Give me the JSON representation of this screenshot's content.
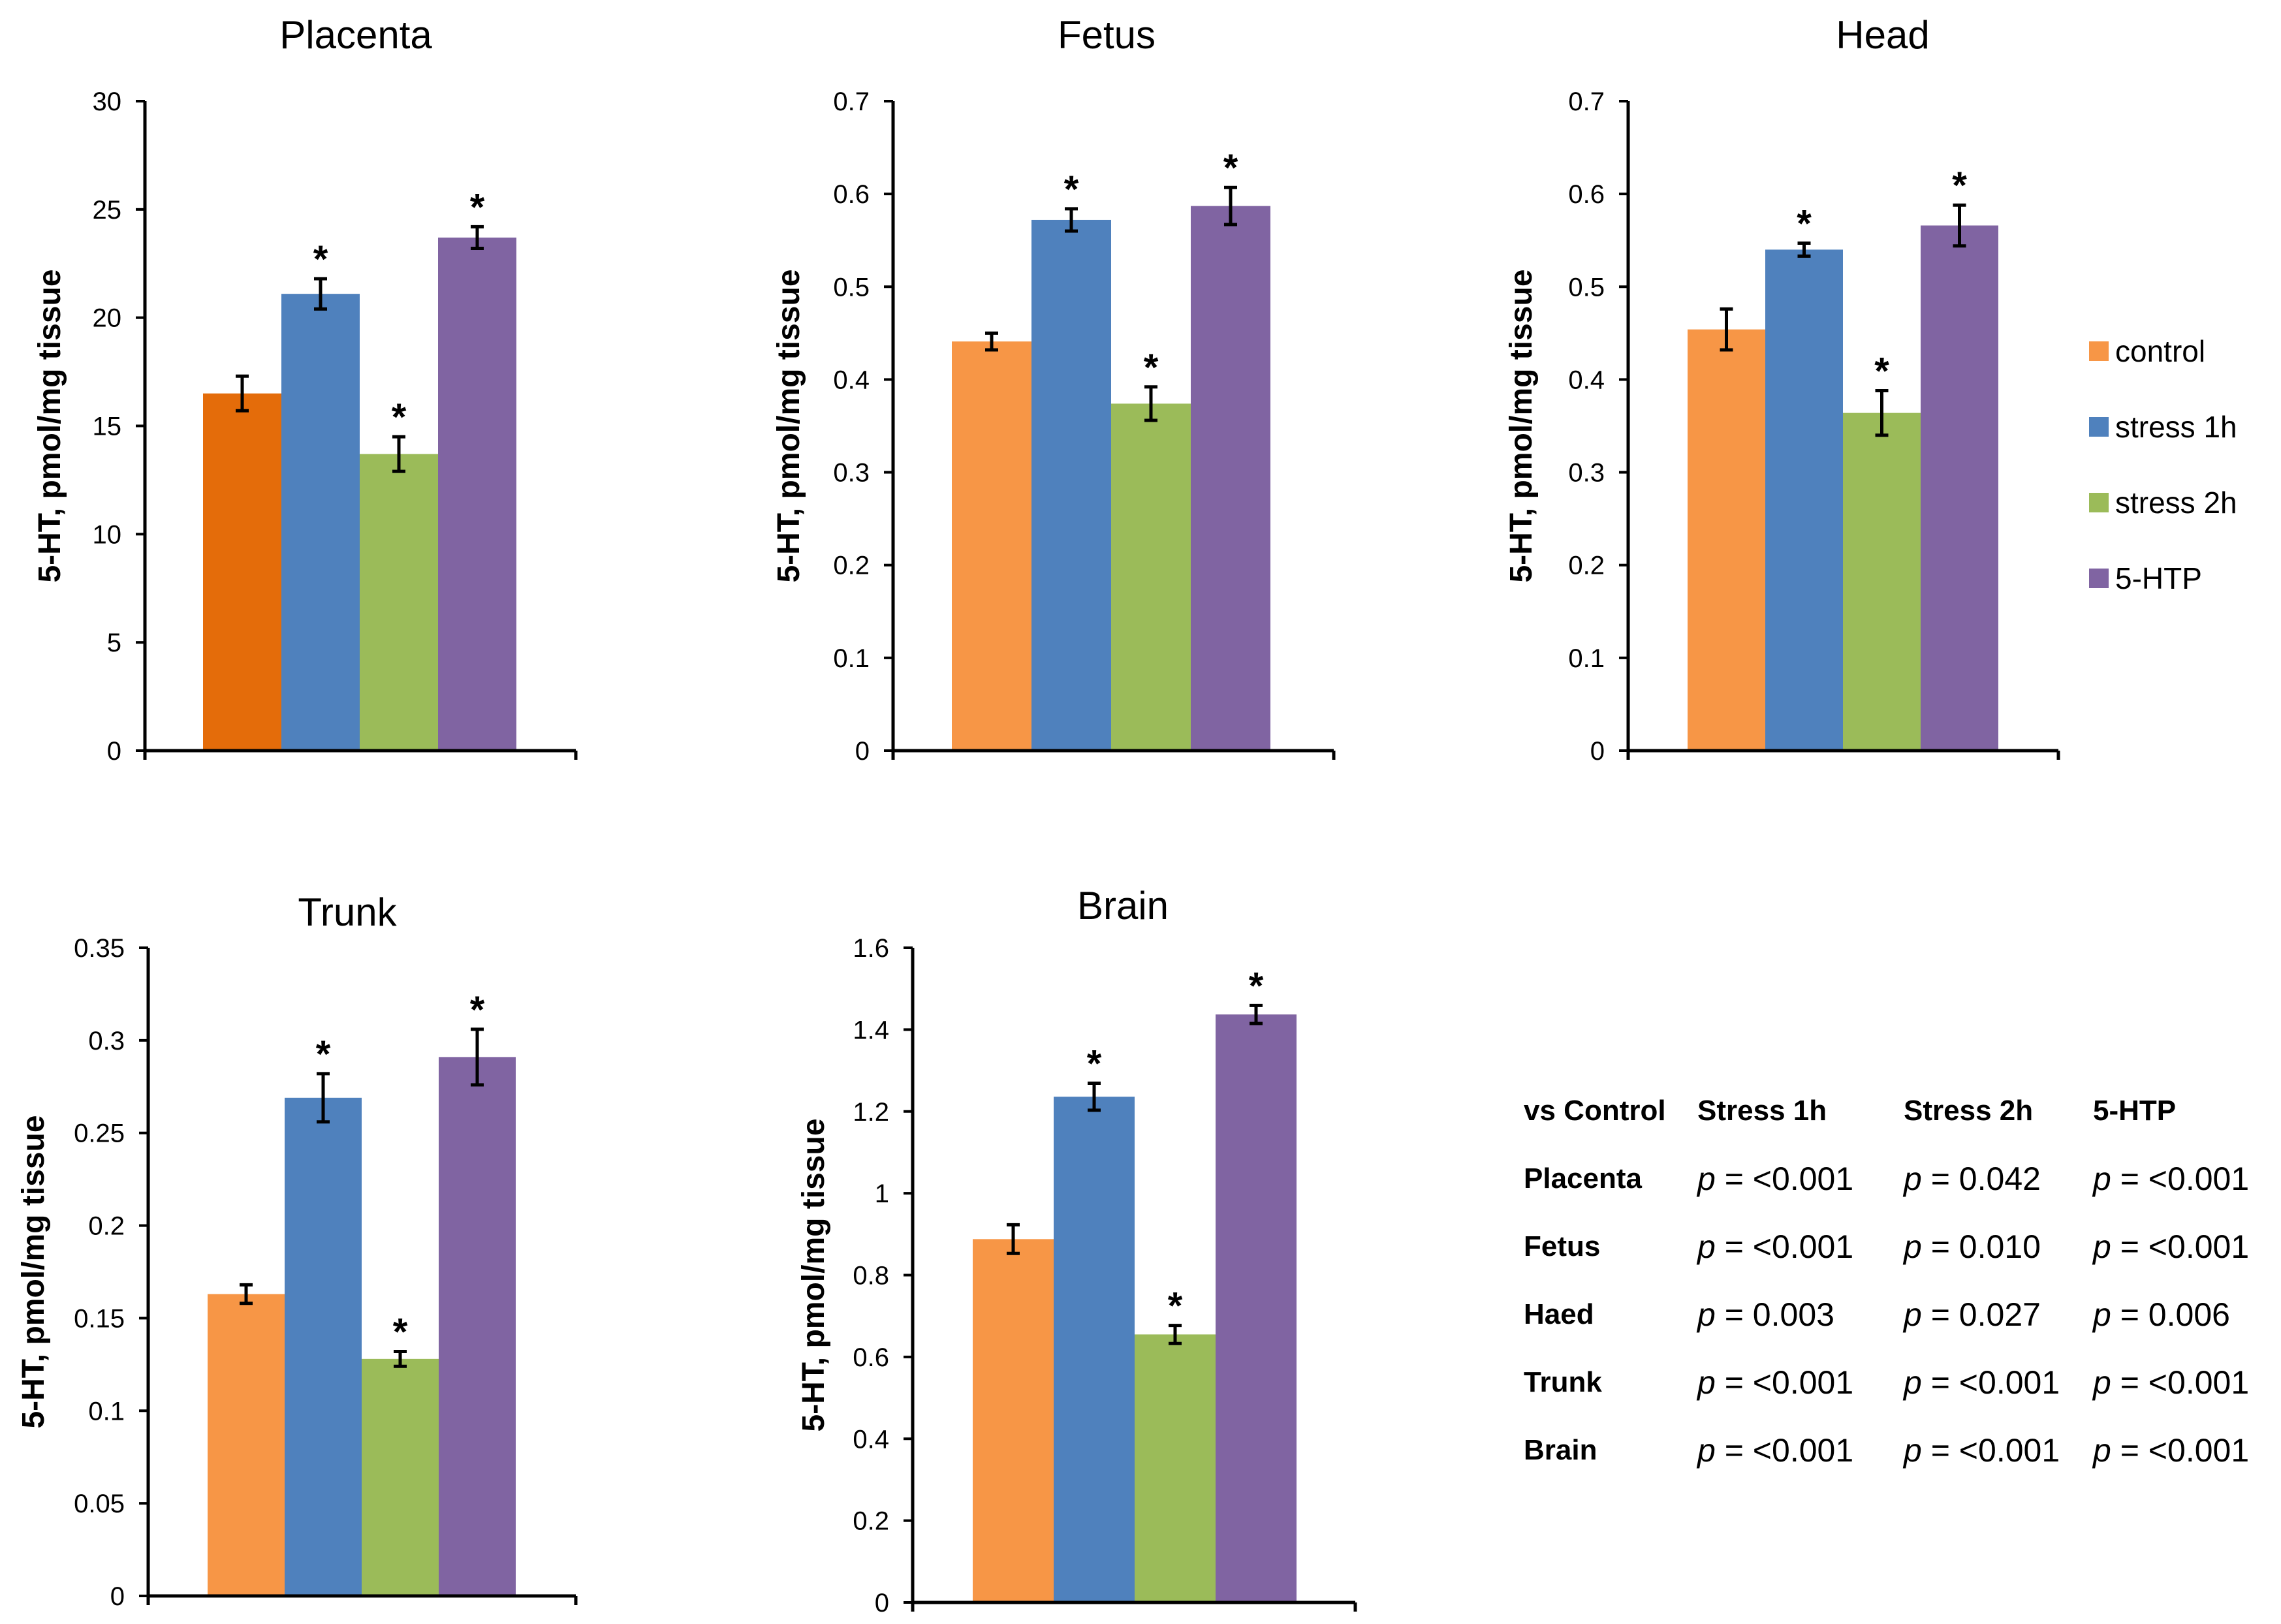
{
  "legend": [
    {
      "label": "control",
      "color": "#F79646"
    },
    {
      "label": "stress 1h",
      "color": "#4F81BD"
    },
    {
      "label": "stress 2h",
      "color": "#9BBB59"
    },
    {
      "label": "5-HTP",
      "color": "#8064A2"
    }
  ],
  "stats_table": {
    "headers": [
      "vs Control",
      "Stress 1h",
      "Stress 2h",
      "5-HTP"
    ],
    "p_symbol": "p",
    "rows": [
      {
        "label": "Placenta",
        "values": [
          "= <0.001",
          "= 0.042",
          "= <0.001"
        ]
      },
      {
        "label": "Fetus",
        "values": [
          "= <0.001",
          "= 0.010",
          "= <0.001"
        ]
      },
      {
        "label": "Haed",
        "values": [
          "= 0.003",
          "= 0.027",
          "= 0.006"
        ]
      },
      {
        "label": "Trunk",
        "values": [
          "= <0.001",
          "= <0.001",
          "= <0.001"
        ]
      },
      {
        "label": "Brain",
        "values": [
          "= <0.001",
          "= <0.001",
          "= <0.001"
        ]
      }
    ]
  },
  "chart_data": [
    {
      "type": "bar",
      "title": "Placenta",
      "ylabel": "5-HT, pmol/mg tissue",
      "ylim": [
        0,
        30
      ],
      "yticks": [
        0,
        5,
        10,
        15,
        20,
        25,
        30
      ],
      "categories": [
        "control",
        "stress 1h",
        "stress 2h",
        "5-HTP"
      ],
      "values": [
        16.5,
        21.1,
        13.7,
        23.7
      ],
      "errors": [
        0.8,
        0.7,
        0.8,
        0.5
      ],
      "significant": [
        false,
        true,
        true,
        true
      ],
      "marker": "*",
      "colors": [
        "#E46C0A",
        "#4F81BD",
        "#9BBB59",
        "#8064A2"
      ]
    },
    {
      "type": "bar",
      "title": "Fetus",
      "ylabel": "5-HT, pmol/mg tissue",
      "ylim": [
        0,
        0.7
      ],
      "yticks": [
        0,
        0.1,
        0.2,
        0.3,
        0.4,
        0.5,
        0.6,
        0.7
      ],
      "categories": [
        "control",
        "stress 1h",
        "stress 2h",
        "5-HTP"
      ],
      "values": [
        0.441,
        0.572,
        0.374,
        0.587
      ],
      "errors": [
        0.009,
        0.012,
        0.018,
        0.02
      ],
      "significant": [
        false,
        true,
        true,
        true
      ],
      "marker": "*",
      "colors": [
        "#F79646",
        "#4F81BD",
        "#9BBB59",
        "#8064A2"
      ]
    },
    {
      "type": "bar",
      "title": "Head",
      "ylabel": "5-HT, pmol/mg tissue",
      "ylim": [
        0,
        0.7
      ],
      "yticks": [
        0,
        0.1,
        0.2,
        0.3,
        0.4,
        0.5,
        0.6,
        0.7
      ],
      "categories": [
        "control",
        "stress 1h",
        "stress 2h",
        "5-HTP"
      ],
      "values": [
        0.454,
        0.54,
        0.364,
        0.566
      ],
      "errors": [
        0.022,
        0.007,
        0.024,
        0.022
      ],
      "significant": [
        false,
        true,
        true,
        true
      ],
      "marker": "*",
      "colors": [
        "#F79646",
        "#4F81BD",
        "#9BBB59",
        "#8064A2"
      ]
    },
    {
      "type": "bar",
      "title": "Trunk",
      "ylabel": "5-HT, pmol/mg tissue",
      "ylim": [
        0,
        0.35
      ],
      "yticks": [
        0,
        0.05,
        0.1,
        0.15,
        0.2,
        0.25,
        0.3,
        0.35
      ],
      "categories": [
        "control",
        "stress 1h",
        "stress 2h",
        "5-HTP"
      ],
      "values": [
        0.163,
        0.269,
        0.128,
        0.291
      ],
      "errors": [
        0.005,
        0.013,
        0.004,
        0.015
      ],
      "significant": [
        false,
        true,
        true,
        true
      ],
      "marker": "*",
      "colors": [
        "#F79646",
        "#4F81BD",
        "#9BBB59",
        "#8064A2"
      ]
    },
    {
      "type": "bar",
      "title": "Brain",
      "ylabel": "5-HT, pmol/mg tissue",
      "ylim": [
        0,
        1.6
      ],
      "yticks": [
        0,
        0.2,
        0.4,
        0.6,
        0.8,
        1,
        1.2,
        1.4,
        1.6
      ],
      "categories": [
        "control",
        "stress 1h",
        "stress 2h",
        "5-HTP"
      ],
      "values": [
        0.888,
        1.236,
        0.655,
        1.437
      ],
      "errors": [
        0.035,
        0.033,
        0.022,
        0.022
      ],
      "significant": [
        false,
        true,
        true,
        true
      ],
      "marker": "*",
      "colors": [
        "#F79646",
        "#4F81BD",
        "#9BBB59",
        "#8064A2"
      ]
    }
  ]
}
